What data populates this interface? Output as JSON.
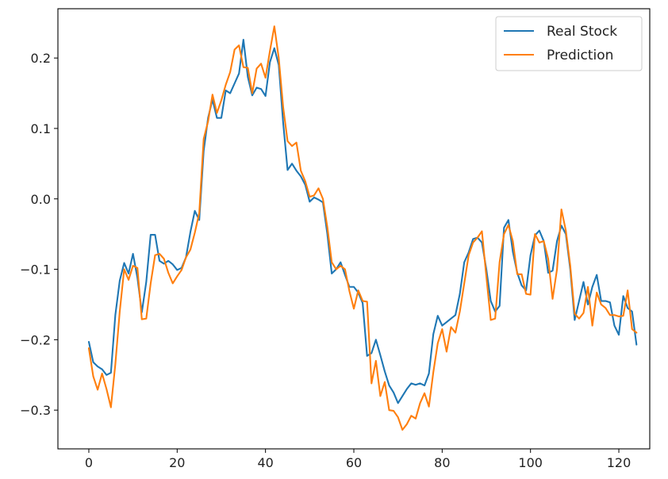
{
  "chart_data": {
    "type": "line",
    "title": "",
    "xlabel": "",
    "ylabel": "",
    "xlim": [
      -7,
      127
    ],
    "ylim": [
      -0.355,
      0.27
    ],
    "xticks": [
      0,
      20,
      40,
      60,
      80,
      100,
      120
    ],
    "xtick_labels": [
      "0",
      "20",
      "40",
      "60",
      "80",
      "100",
      "120"
    ],
    "yticks": [
      -0.3,
      -0.2,
      -0.1,
      0.0,
      0.1,
      0.2
    ],
    "ytick_labels": [
      "−0.3",
      "−0.2",
      "−0.1",
      "0.0",
      "0.1",
      "0.2"
    ],
    "grid": false,
    "legend_position": "top-right",
    "x_start": 0,
    "x_step": 1,
    "series": [
      {
        "name": "Real Stock",
        "color": "#1f77b4",
        "values": [
          -0.203,
          -0.232,
          -0.238,
          -0.242,
          -0.25,
          -0.247,
          -0.165,
          -0.116,
          -0.091,
          -0.106,
          -0.078,
          -0.112,
          -0.161,
          -0.118,
          -0.051,
          -0.051,
          -0.088,
          -0.092,
          -0.088,
          -0.093,
          -0.101,
          -0.098,
          -0.083,
          -0.047,
          -0.017,
          -0.03,
          0.068,
          0.115,
          0.141,
          0.115,
          0.115,
          0.154,
          0.15,
          0.164,
          0.178,
          0.226,
          0.173,
          0.147,
          0.158,
          0.156,
          0.146,
          0.194,
          0.214,
          0.19,
          0.108,
          0.041,
          0.05,
          0.04,
          0.032,
          0.02,
          -0.004,
          0.002,
          -0.001,
          -0.005,
          -0.05,
          -0.106,
          -0.1,
          -0.09,
          -0.108,
          -0.125,
          -0.125,
          -0.133,
          -0.148,
          -0.223,
          -0.219,
          -0.2,
          -0.222,
          -0.245,
          -0.265,
          -0.275,
          -0.29,
          -0.28,
          -0.27,
          -0.262,
          -0.264,
          -0.262,
          -0.265,
          -0.248,
          -0.192,
          -0.166,
          -0.18,
          -0.175,
          -0.17,
          -0.165,
          -0.135,
          -0.09,
          -0.076,
          -0.057,
          -0.055,
          -0.062,
          -0.1,
          -0.145,
          -0.16,
          -0.152,
          -0.041,
          -0.03,
          -0.075,
          -0.105,
          -0.123,
          -0.13,
          -0.08,
          -0.052,
          -0.045,
          -0.06,
          -0.105,
          -0.102,
          -0.06,
          -0.038,
          -0.05,
          -0.1,
          -0.172,
          -0.145,
          -0.118,
          -0.15,
          -0.125,
          -0.108,
          -0.145,
          -0.145,
          -0.147,
          -0.18,
          -0.193,
          -0.138,
          -0.155,
          -0.16,
          -0.207
        ]
      },
      {
        "name": "Prediction",
        "color": "#ff7f0e",
        "values": [
          -0.212,
          -0.252,
          -0.271,
          -0.248,
          -0.27,
          -0.296,
          -0.235,
          -0.16,
          -0.1,
          -0.115,
          -0.095,
          -0.098,
          -0.171,
          -0.17,
          -0.12,
          -0.08,
          -0.078,
          -0.085,
          -0.105,
          -0.12,
          -0.11,
          -0.101,
          -0.083,
          -0.072,
          -0.048,
          -0.02,
          0.085,
          0.11,
          0.148,
          0.122,
          0.14,
          0.162,
          0.18,
          0.212,
          0.218,
          0.187,
          0.186,
          0.15,
          0.185,
          0.192,
          0.172,
          0.21,
          0.245,
          0.2,
          0.13,
          0.082,
          0.075,
          0.08,
          0.04,
          0.025,
          0.003,
          0.005,
          0.015,
          0.0,
          -0.04,
          -0.09,
          -0.1,
          -0.095,
          -0.1,
          -0.131,
          -0.156,
          -0.13,
          -0.145,
          -0.146,
          -0.262,
          -0.23,
          -0.28,
          -0.26,
          -0.3,
          -0.301,
          -0.31,
          -0.328,
          -0.32,
          -0.308,
          -0.312,
          -0.29,
          -0.276,
          -0.295,
          -0.246,
          -0.205,
          -0.185,
          -0.217,
          -0.182,
          -0.19,
          -0.16,
          -0.12,
          -0.08,
          -0.062,
          -0.055,
          -0.046,
          -0.11,
          -0.172,
          -0.17,
          -0.09,
          -0.05,
          -0.037,
          -0.06,
          -0.107,
          -0.107,
          -0.135,
          -0.136,
          -0.05,
          -0.062,
          -0.06,
          -0.085,
          -0.142,
          -0.1,
          -0.015,
          -0.045,
          -0.095,
          -0.163,
          -0.17,
          -0.162,
          -0.125,
          -0.18,
          -0.133,
          -0.15,
          -0.155,
          -0.165,
          -0.165,
          -0.167,
          -0.166,
          -0.13,
          -0.185,
          -0.19
        ]
      }
    ]
  }
}
